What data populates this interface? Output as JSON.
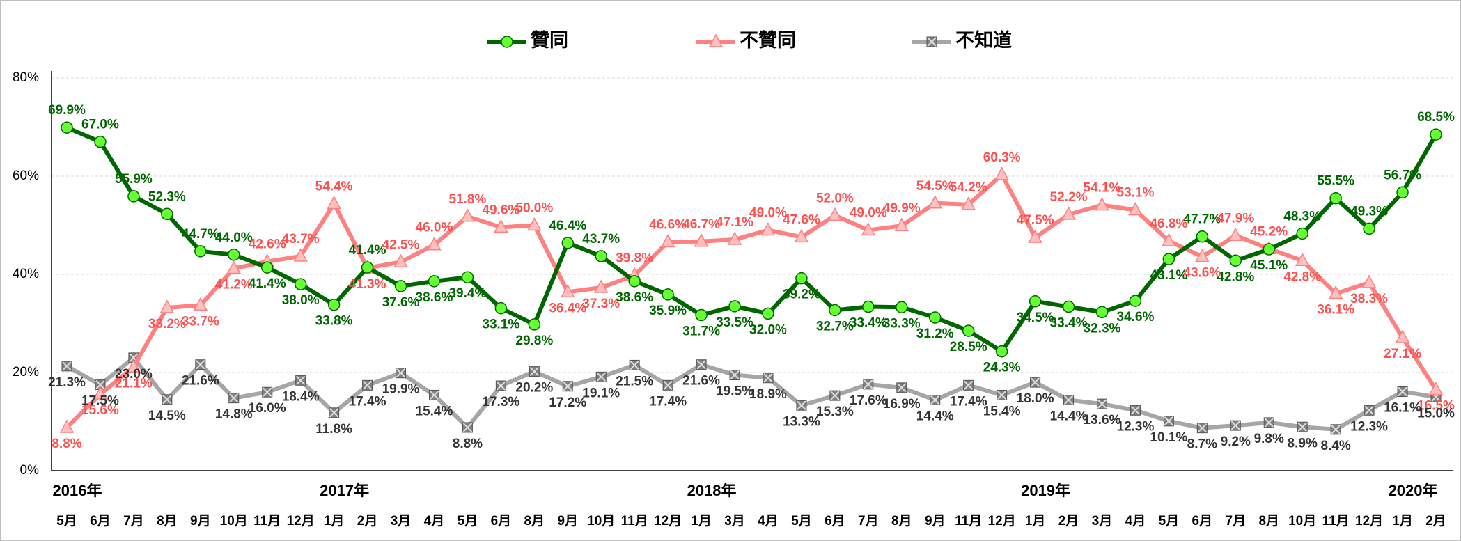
{
  "chart_data": {
    "type": "line",
    "categories": [
      "5月",
      "6月",
      "7月",
      "8月",
      "9月",
      "10月",
      "11月",
      "12月",
      "1月",
      "2月",
      "3月",
      "4月",
      "5月",
      "6月",
      "8月",
      "9月",
      "10月",
      "11月",
      "12月",
      "1月",
      "3月",
      "4月",
      "5月",
      "6月",
      "7月",
      "8月",
      "9月",
      "11月",
      "12月",
      "1月",
      "2月",
      "3月",
      "4月",
      "5月",
      "6月",
      "7月",
      "8月",
      "10月",
      "11月",
      "12月",
      "1月",
      "2月"
    ],
    "year_labels": [
      {
        "index": 0,
        "label": "2016年"
      },
      {
        "index": 8,
        "label": "2017年"
      },
      {
        "index": 19,
        "label": "2018年"
      },
      {
        "index": 29,
        "label": "2019年"
      },
      {
        "index": 40,
        "label": "2020年"
      }
    ],
    "ylim": [
      0,
      80
    ],
    "yticks": [
      {
        "value": 0,
        "label": "0%"
      },
      {
        "value": 20,
        "label": "20%"
      },
      {
        "value": 40,
        "label": "40%"
      },
      {
        "value": 60,
        "label": "60%"
      },
      {
        "value": 80,
        "label": "80%"
      }
    ],
    "grid": true,
    "legend": "top",
    "series": [
      {
        "name": "贊同",
        "color": "#006600",
        "marker": "circle",
        "marker_color": "#66ff33",
        "values": [
          69.9,
          67.0,
          55.9,
          52.3,
          44.7,
          44.0,
          41.4,
          38.0,
          33.8,
          41.4,
          37.6,
          38.6,
          39.4,
          33.1,
          29.8,
          46.4,
          43.7,
          38.6,
          35.9,
          31.7,
          33.5,
          32.0,
          39.2,
          32.7,
          33.4,
          33.3,
          31.2,
          28.5,
          24.3,
          34.5,
          33.4,
          32.3,
          34.6,
          43.1,
          47.7,
          42.8,
          45.1,
          48.3,
          55.5,
          49.3,
          56.7,
          68.5
        ],
        "value_labels": [
          "69.9%",
          "67.0%",
          "55.9%",
          "52.3%",
          "44.7%",
          "44.0%",
          "41.4%",
          "38.0%",
          "33.8%",
          "41.4%",
          "37.6%",
          "38.6%",
          "39.4%",
          "33.1%",
          "29.8%",
          "46.4%",
          "43.7%",
          "38.6%",
          "35.9%",
          "31.7%",
          "33.5%",
          "32.0%",
          "39.2%",
          "32.7%",
          "33.4%",
          "33.3%",
          "31.2%",
          "28.5%",
          "24.3%",
          "34.5%",
          "33.4%",
          "32.3%",
          "34.6%",
          "43.1%",
          "47.7%",
          "42.8%",
          "45.1%",
          "48.3%",
          "55.5%",
          "49.3%",
          "56.7%",
          "68.5%"
        ]
      },
      {
        "name": "不贊同",
        "color": "#ff8080",
        "marker": "triangle",
        "marker_color": "#ffc0c0",
        "values": [
          8.8,
          15.6,
          21.1,
          33.2,
          33.7,
          41.2,
          42.6,
          43.7,
          54.4,
          41.3,
          42.5,
          46.0,
          51.8,
          49.6,
          50.0,
          36.4,
          37.3,
          39.8,
          46.6,
          46.7,
          47.1,
          49.0,
          47.6,
          52.0,
          49.0,
          49.9,
          54.5,
          54.2,
          60.3,
          47.5,
          52.2,
          54.1,
          53.1,
          46.8,
          43.6,
          47.9,
          45.2,
          42.8,
          36.1,
          38.3,
          27.1,
          16.5
        ],
        "value_labels": [
          "8.8%",
          "15.6%",
          "21.1%",
          "33.2%",
          "33.7%",
          "41.2%",
          "42.6%",
          "43.7%",
          "54.4%",
          "41.3%",
          "42.5%",
          "46.0%",
          "51.8%",
          "49.6%",
          "50.0%",
          "36.4%",
          "37.3%",
          "39.8%",
          "46.6%",
          "46.7%",
          "47.1%",
          "49.0%",
          "47.6%",
          "52.0%",
          "49.0%",
          "49.9%",
          "54.5%",
          "54.2%",
          "60.3%",
          "47.5%",
          "52.2%",
          "54.1%",
          "53.1%",
          "46.8%",
          "43.6%",
          "47.9%",
          "45.2%",
          "42.8%",
          "36.1%",
          "38.3%",
          "27.1%",
          "16.5%"
        ]
      },
      {
        "name": "不知道",
        "color": "#a6a6a6",
        "marker": "xsquare",
        "marker_color": "#808080",
        "values": [
          21.3,
          17.5,
          23.0,
          14.5,
          21.6,
          14.8,
          16.0,
          18.4,
          11.8,
          17.4,
          19.9,
          15.4,
          8.8,
          17.3,
          20.2,
          17.2,
          19.1,
          21.5,
          17.4,
          21.6,
          19.5,
          18.9,
          13.3,
          15.3,
          17.6,
          16.9,
          14.4,
          17.4,
          15.4,
          18.0,
          14.4,
          13.6,
          12.3,
          10.1,
          8.7,
          9.2,
          9.8,
          8.9,
          8.4,
          12.3,
          16.1,
          15.0
        ],
        "value_labels": [
          "21.3%",
          "17.5%",
          "23.0%",
          "14.5%",
          "21.6%",
          "14.8%",
          "16.0%",
          "18.4%",
          "11.8%",
          "17.4%",
          "19.9%",
          "15.4%",
          "8.8%",
          "17.3%",
          "20.2%",
          "17.2%",
          "19.1%",
          "21.5%",
          "17.4%",
          "21.6%",
          "19.5%",
          "18.9%",
          "13.3%",
          "15.3%",
          "17.6%",
          "16.9%",
          "14.4%",
          "17.4%",
          "15.4%",
          "18.0%",
          "14.4%",
          "13.6%",
          "12.3%",
          "10.1%",
          "8.7%",
          "9.2%",
          "9.8%",
          "8.9%",
          "8.4%",
          "12.3%",
          "16.1%",
          "15.0%"
        ]
      }
    ]
  }
}
